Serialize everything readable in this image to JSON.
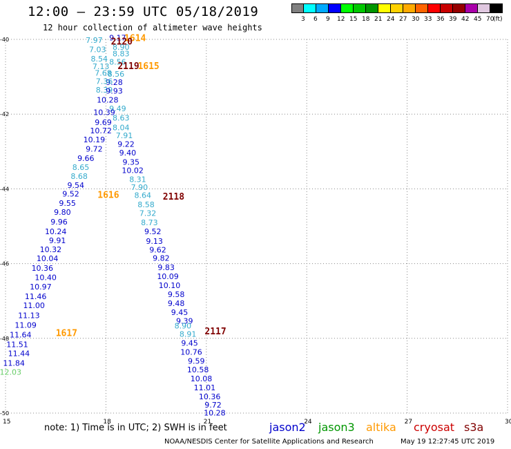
{
  "header": {
    "title": "12:00 – 23:59 UTC 05/18/2019",
    "subtitle": "12 hour collection of altimeter wave heights"
  },
  "colorbar": {
    "unit": "(ft)",
    "colors": [
      "#808080",
      "#00ffff",
      "#00aaff",
      "#0000ff",
      "#00ff00",
      "#00c800",
      "#009600",
      "#ffff00",
      "#ffd200",
      "#ffaa00",
      "#ff6400",
      "#ff0000",
      "#c80000",
      "#960000",
      "#aa00aa",
      "#e0c8e0",
      "#000000"
    ],
    "labels": [
      "3",
      "6",
      "9",
      "12",
      "15",
      "18",
      "21",
      "24",
      "27",
      "30",
      "33",
      "36",
      "39",
      "42",
      "45",
      "70"
    ]
  },
  "chart_data": {
    "type": "scatter",
    "xlim": [
      15,
      30
    ],
    "ylim": [
      -50,
      -40
    ],
    "xticks": [
      "15",
      "18",
      "21",
      "24",
      "27",
      "30"
    ],
    "yticks": [
      "-40",
      "-42",
      "-44",
      "-46",
      "-48",
      "-50"
    ],
    "grid": "dotted",
    "satellites": {
      "jason2": "#0000cc",
      "jason3": "#009600",
      "altika": "#ff9900",
      "cryosat": "#cc0000",
      "s3a": "#800000",
      "light": "#33aacc",
      "green": "#66cc66"
    },
    "track_labels": [
      {
        "text": "1614",
        "x": 18.55,
        "y": -39.95,
        "color": "altika"
      },
      {
        "text": "2120",
        "x": 18.15,
        "y": -40.05,
        "color": "s3a"
      },
      {
        "text": "2119",
        "x": 18.35,
        "y": -40.7,
        "color": "s3a"
      },
      {
        "text": "1615",
        "x": 18.95,
        "y": -40.7,
        "color": "altika"
      },
      {
        "text": "1616",
        "x": 17.75,
        "y": -44.15,
        "color": "altika"
      },
      {
        "text": "2118",
        "x": 19.7,
        "y": -44.2,
        "color": "s3a"
      },
      {
        "text": "2117",
        "x": 20.95,
        "y": -47.8,
        "color": "s3a"
      },
      {
        "text": "1617",
        "x": 16.5,
        "y": -47.85,
        "color": "altika"
      }
    ],
    "points": [
      {
        "x": 17.65,
        "y": -40.02,
        "v": "7.97",
        "c": "light"
      },
      {
        "x": 18.35,
        "y": -39.95,
        "v": "9.17",
        "c": "jason2"
      },
      {
        "x": 18.45,
        "y": -40.2,
        "v": "8.90",
        "c": "light"
      },
      {
        "x": 17.75,
        "y": -40.27,
        "v": "7.03",
        "c": "light"
      },
      {
        "x": 18.45,
        "y": -40.38,
        "v": "8.83",
        "c": "light"
      },
      {
        "x": 17.8,
        "y": -40.52,
        "v": "8.54",
        "c": "light"
      },
      {
        "x": 18.35,
        "y": -40.6,
        "v": "8.56",
        "c": "light"
      },
      {
        "x": 17.85,
        "y": -40.72,
        "v": "7.13",
        "c": "light"
      },
      {
        "x": 18.3,
        "y": -40.92,
        "v": "8.56",
        "c": "light"
      },
      {
        "x": 17.92,
        "y": -40.9,
        "v": "7.68",
        "c": "light"
      },
      {
        "x": 18.25,
        "y": -41.15,
        "v": "9.28",
        "c": "jason2"
      },
      {
        "x": 17.95,
        "y": -41.12,
        "v": "7.36",
        "c": "light"
      },
      {
        "x": 17.95,
        "y": -41.35,
        "v": "8.39",
        "c": "light"
      },
      {
        "x": 18.25,
        "y": -41.38,
        "v": "9.93",
        "c": "jason2"
      },
      {
        "x": 18.05,
        "y": -41.62,
        "v": "10.28",
        "c": "jason2"
      },
      {
        "x": 18.35,
        "y": -41.85,
        "v": "9.49",
        "c": "light"
      },
      {
        "x": 17.95,
        "y": -41.95,
        "v": "10.39",
        "c": "jason2"
      },
      {
        "x": 18.45,
        "y": -42.1,
        "v": "8.63",
        "c": "light"
      },
      {
        "x": 17.92,
        "y": -42.22,
        "v": "9.69",
        "c": "jason2"
      },
      {
        "x": 18.45,
        "y": -42.36,
        "v": "8.04",
        "c": "light"
      },
      {
        "x": 17.85,
        "y": -42.44,
        "v": "10.72",
        "c": "jason2"
      },
      {
        "x": 18.55,
        "y": -42.57,
        "v": "7.91",
        "c": "light"
      },
      {
        "x": 17.65,
        "y": -42.68,
        "v": "10.19",
        "c": "jason2"
      },
      {
        "x": 18.6,
        "y": -42.8,
        "v": "9.22",
        "c": "jason2"
      },
      {
        "x": 17.65,
        "y": -42.93,
        "v": "9.72",
        "c": "jason2"
      },
      {
        "x": 18.65,
        "y": -43.03,
        "v": "9.40",
        "c": "jason2"
      },
      {
        "x": 17.4,
        "y": -43.18,
        "v": "9.66",
        "c": "jason2"
      },
      {
        "x": 18.75,
        "y": -43.28,
        "v": "9.35",
        "c": "jason2"
      },
      {
        "x": 17.25,
        "y": -43.42,
        "v": "8.65",
        "c": "light"
      },
      {
        "x": 18.8,
        "y": -43.5,
        "v": "10.02",
        "c": "jason2"
      },
      {
        "x": 17.2,
        "y": -43.66,
        "v": "8.68",
        "c": "light"
      },
      {
        "x": 18.95,
        "y": -43.74,
        "v": "8.31",
        "c": "light"
      },
      {
        "x": 17.1,
        "y": -43.9,
        "v": "9.54",
        "c": "jason2"
      },
      {
        "x": 19.0,
        "y": -43.96,
        "v": "7.90",
        "c": "light"
      },
      {
        "x": 16.95,
        "y": -44.13,
        "v": "9.52",
        "c": "jason2"
      },
      {
        "x": 19.1,
        "y": -44.17,
        "v": "8.64",
        "c": "light"
      },
      {
        "x": 16.85,
        "y": -44.38,
        "v": "9.55",
        "c": "jason2"
      },
      {
        "x": 19.2,
        "y": -44.42,
        "v": "8.58",
        "c": "light"
      },
      {
        "x": 16.7,
        "y": -44.62,
        "v": "9.80",
        "c": "jason2"
      },
      {
        "x": 19.25,
        "y": -44.65,
        "v": "7.32",
        "c": "light"
      },
      {
        "x": 16.6,
        "y": -44.88,
        "v": "9.96",
        "c": "jason2"
      },
      {
        "x": 19.3,
        "y": -44.9,
        "v": "8.73",
        "c": "light"
      },
      {
        "x": 16.5,
        "y": -45.14,
        "v": "10.24",
        "c": "jason2"
      },
      {
        "x": 19.4,
        "y": -45.14,
        "v": "9.52",
        "c": "jason2"
      },
      {
        "x": 16.55,
        "y": -45.38,
        "v": "9.91",
        "c": "jason2"
      },
      {
        "x": 19.45,
        "y": -45.4,
        "v": "9.13",
        "c": "jason2"
      },
      {
        "x": 16.35,
        "y": -45.62,
        "v": "10.32",
        "c": "jason2"
      },
      {
        "x": 19.55,
        "y": -45.63,
        "v": "9.62",
        "c": "jason2"
      },
      {
        "x": 16.25,
        "y": -45.86,
        "v": "10.04",
        "c": "jason2"
      },
      {
        "x": 19.65,
        "y": -45.85,
        "v": "9.82",
        "c": "jason2"
      },
      {
        "x": 16.1,
        "y": -46.12,
        "v": "10.36",
        "c": "jason2"
      },
      {
        "x": 19.8,
        "y": -46.1,
        "v": "9.83",
        "c": "jason2"
      },
      {
        "x": 16.2,
        "y": -46.37,
        "v": "10.40",
        "c": "jason2"
      },
      {
        "x": 19.85,
        "y": -46.34,
        "v": "10.09",
        "c": "jason2"
      },
      {
        "x": 16.05,
        "y": -46.62,
        "v": "10.97",
        "c": "jason2"
      },
      {
        "x": 19.9,
        "y": -46.58,
        "v": "10.10",
        "c": "jason2"
      },
      {
        "x": 15.9,
        "y": -46.88,
        "v": "11.46",
        "c": "jason2"
      },
      {
        "x": 20.1,
        "y": -46.82,
        "v": "9.58",
        "c": "jason2"
      },
      {
        "x": 15.85,
        "y": -47.12,
        "v": "11.00",
        "c": "jason2"
      },
      {
        "x": 20.1,
        "y": -47.06,
        "v": "9.48",
        "c": "jason2"
      },
      {
        "x": 15.7,
        "y": -47.38,
        "v": "11.13",
        "c": "jason2"
      },
      {
        "x": 20.2,
        "y": -47.3,
        "v": "9.45",
        "c": "jason2"
      },
      {
        "x": 15.6,
        "y": -47.64,
        "v": "11.09",
        "c": "jason2"
      },
      {
        "x": 20.35,
        "y": -47.53,
        "v": "9.39",
        "c": "jason2"
      },
      {
        "x": 20.3,
        "y": -47.66,
        "v": "8.90",
        "c": "light"
      },
      {
        "x": 15.45,
        "y": -47.9,
        "v": "11.64",
        "c": "jason2"
      },
      {
        "x": 20.45,
        "y": -47.88,
        "v": "8.91",
        "c": "light"
      },
      {
        "x": 15.35,
        "y": -48.16,
        "v": "11.51",
        "c": "jason2"
      },
      {
        "x": 20.5,
        "y": -48.12,
        "v": "9.45",
        "c": "jason2"
      },
      {
        "x": 15.4,
        "y": -48.4,
        "v": "11.44",
        "c": "jason2"
      },
      {
        "x": 20.55,
        "y": -48.36,
        "v": "10.76",
        "c": "jason2"
      },
      {
        "x": 15.25,
        "y": -48.66,
        "v": "11.84",
        "c": "jason2"
      },
      {
        "x": 20.7,
        "y": -48.6,
        "v": "9.59",
        "c": "jason2"
      },
      {
        "x": 15.15,
        "y": -48.9,
        "v": "12.03",
        "c": "green"
      },
      {
        "x": 20.75,
        "y": -48.84,
        "v": "10.58",
        "c": "jason2"
      },
      {
        "x": 20.85,
        "y": -49.08,
        "v": "10.08",
        "c": "jason2"
      },
      {
        "x": 20.95,
        "y": -49.32,
        "v": "11.01",
        "c": "jason2"
      },
      {
        "x": 21.1,
        "y": -49.56,
        "v": "10.36",
        "c": "jason2"
      },
      {
        "x": 21.2,
        "y": -49.78,
        "v": "9.72",
        "c": "jason2"
      },
      {
        "x": 21.25,
        "y": -49.99,
        "v": "10.28",
        "c": "jason2"
      }
    ]
  },
  "footer": {
    "note": "note: 1) Time is in UTC; 2) SWH is in feet",
    "legend": [
      {
        "label": "jason2",
        "color": "#0000cc"
      },
      {
        "label": "jason3",
        "color": "#009600"
      },
      {
        "label": "altika",
        "color": "#ff9900"
      },
      {
        "label": "cryosat",
        "color": "#cc0000"
      },
      {
        "label": "s3a",
        "color": "#800000"
      }
    ],
    "credit": "NOAA/NESDIS Center for Satellite Applications and Research",
    "timestamp": "May 19 12:27:45 UTC 2019"
  }
}
